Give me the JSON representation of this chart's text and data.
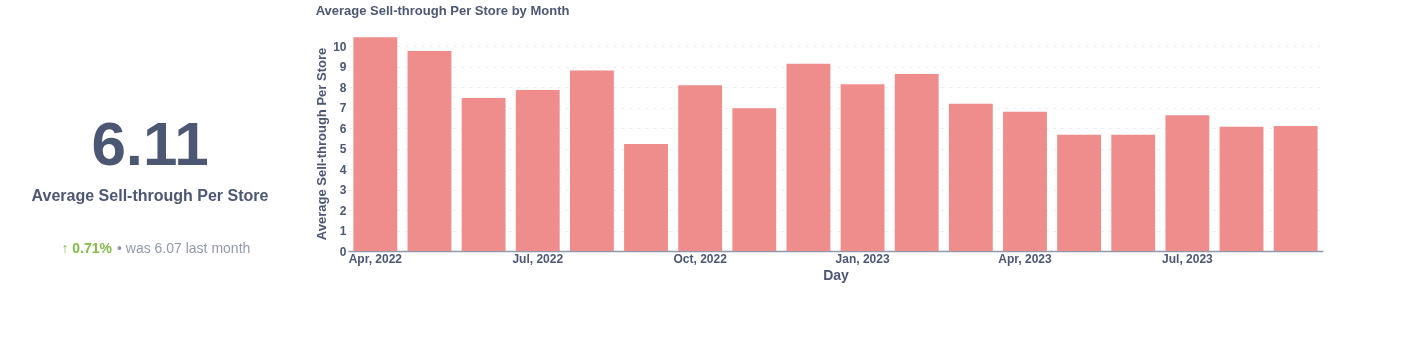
{
  "chart_data": [
    {
      "type": "other",
      "title": "6.11",
      "subtitle": "Average Sell-through Per Store",
      "annotations": [
        "↑ 0.71%",
        "• was 6.07  last month"
      ]
    },
    {
      "type": "bar",
      "title": "Average Sell-through Per Store by Month",
      "xlabel": "Day",
      "ylabel": "Average Sell-through Per Store",
      "categories": [
        "Apr, 2022",
        null,
        null,
        "Jul, 2022",
        null,
        null,
        "Oct, 2022",
        null,
        null,
        "Jan, 2023",
        null,
        null,
        "Apr, 2023",
        null,
        null,
        "Jul, 2023",
        null,
        null
      ],
      "values": [
        10.44,
        9.77,
        7.47,
        7.86,
        8.81,
        5.23,
        8.09,
        6.97,
        9.15,
        8.14,
        8.64,
        7.19,
        6.8,
        5.68,
        5.68,
        6.63,
        6.07,
        6.11
      ],
      "color": "#ef8c8c",
      "ylim": [
        0,
        10.5
      ],
      "yticks": [
        0,
        1,
        2,
        3,
        4,
        5,
        6,
        7,
        8,
        9,
        10
      ],
      "grid": "y"
    }
  ]
}
